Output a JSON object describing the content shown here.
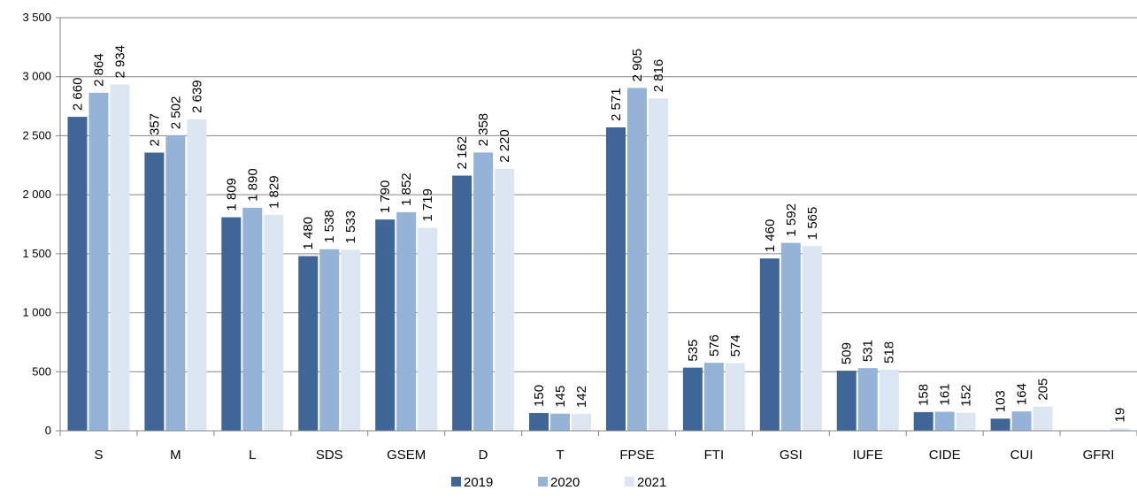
{
  "chart_data": {
    "type": "bar",
    "categories": [
      "S",
      "M",
      "L",
      "SDS",
      "GSEM",
      "D",
      "T",
      "FPSE",
      "FTI",
      "GSI",
      "IUFE",
      "CIDE",
      "CUI",
      "GFRI"
    ],
    "series": [
      {
        "name": "2019",
        "color": "#3F6697",
        "values": [
          2660,
          2357,
          1809,
          1480,
          1790,
          2162,
          150,
          2571,
          535,
          1460,
          509,
          158,
          103,
          null
        ],
        "labels": [
          "2 660",
          "2 357",
          "1 809",
          "1 480",
          "1 790",
          "2 162",
          "150",
          "2 571",
          "535",
          "1 460",
          "509",
          "158",
          "103",
          ""
        ]
      },
      {
        "name": "2020",
        "color": "#95B3D7",
        "values": [
          2864,
          2502,
          1890,
          1538,
          1852,
          2358,
          145,
          2905,
          576,
          1592,
          531,
          161,
          164,
          null
        ],
        "labels": [
          "2 864",
          "2 502",
          "1 890",
          "1 538",
          "1 852",
          "2 358",
          "145",
          "2 905",
          "576",
          "1 592",
          "531",
          "161",
          "164",
          ""
        ]
      },
      {
        "name": "2021",
        "color": "#DCE6F2",
        "values": [
          2934,
          2639,
          1829,
          1533,
          1719,
          2220,
          142,
          2816,
          574,
          1565,
          518,
          152,
          205,
          19
        ],
        "labels": [
          "2 934",
          "2 639",
          "1 829",
          "1 533",
          "1 719",
          "2 220",
          "142",
          "2 816",
          "574",
          "1 565",
          "518",
          "152",
          "205",
          "19"
        ]
      }
    ],
    "yticks": [
      0,
      500,
      1000,
      1500,
      2000,
      2500,
      3000,
      3500
    ],
    "ytick_labels": [
      "0",
      "500",
      "1 000",
      "1 500",
      "2 000",
      "2 500",
      "3 000",
      "3 500"
    ],
    "ylim": [
      0,
      3500
    ],
    "grid": true,
    "legend_position": "bottom"
  }
}
